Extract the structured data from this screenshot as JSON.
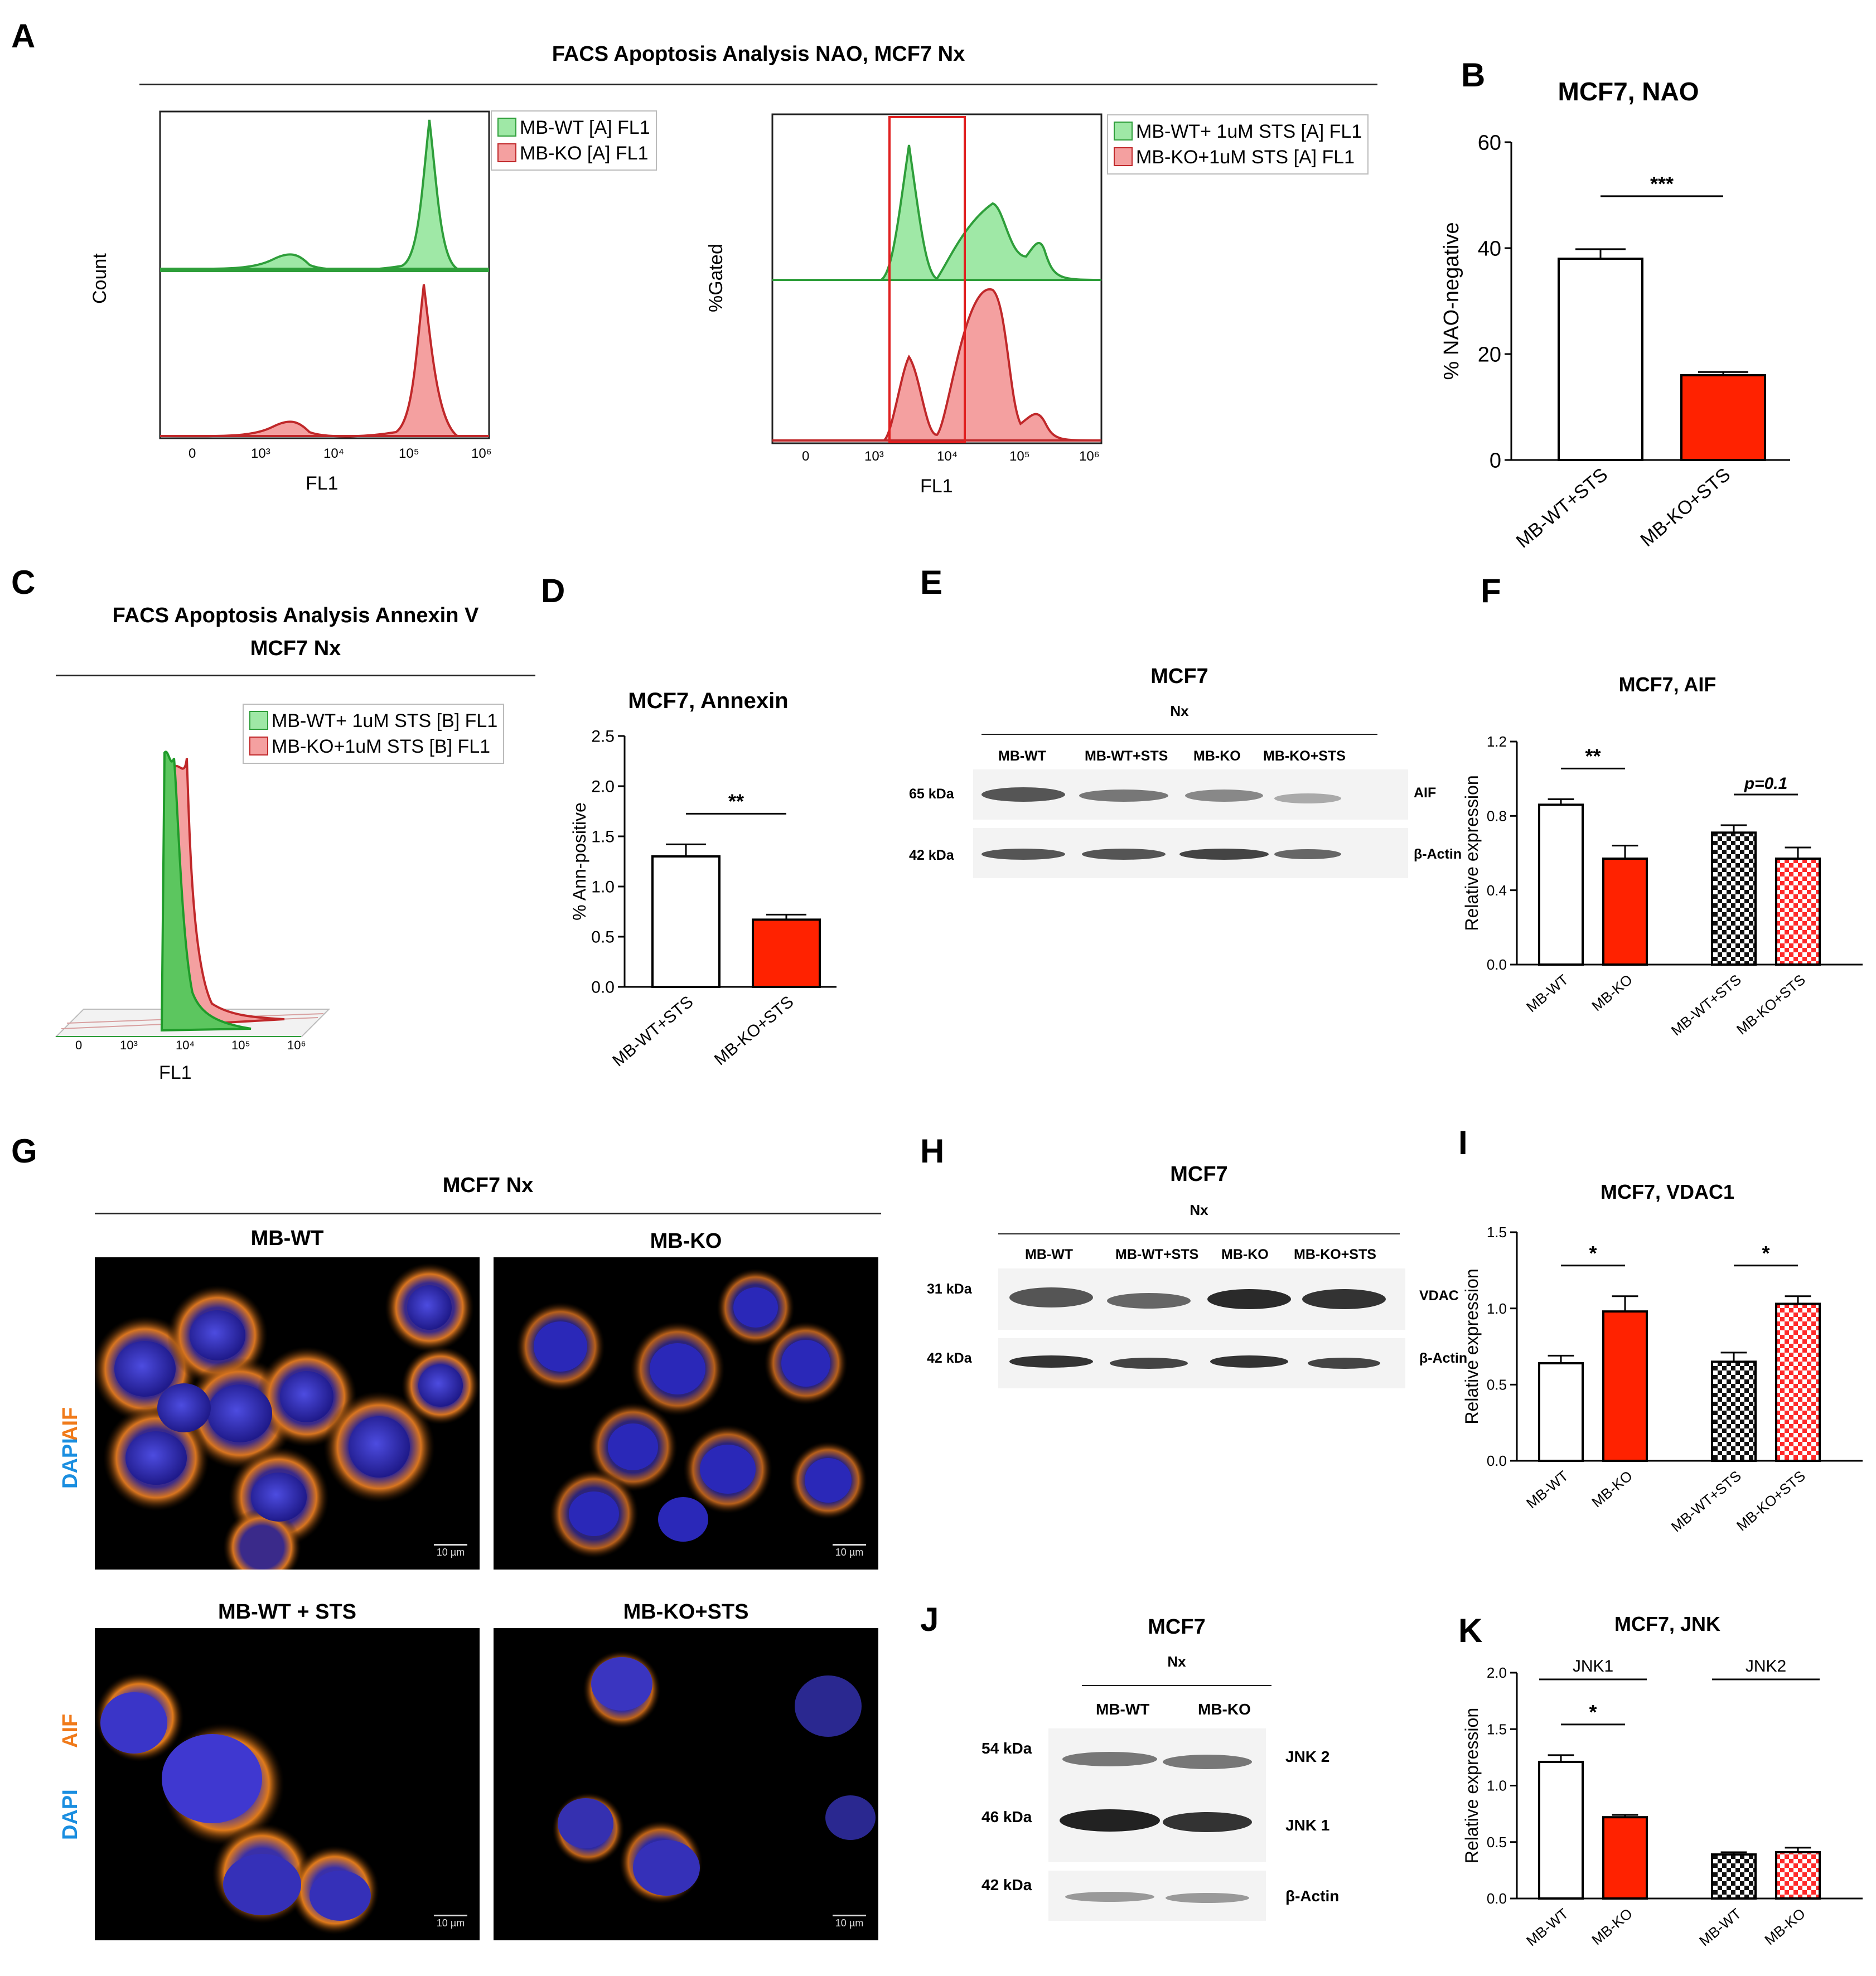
{
  "panels": {
    "A": {
      "label": "A",
      "title": "FACS Apoptosis Analysis NAO, MCF7 Nx",
      "left": {
        "ylabel": "Count",
        "xlabel": "FL1",
        "ticks": [
          "0",
          "10³",
          "10⁴",
          "10⁵",
          "10⁶"
        ],
        "legend": [
          "MB-WT [A] FL1",
          "MB-KO [A] FL1"
        ]
      },
      "right": {
        "ylabel": "%Gated",
        "xlabel": "FL1",
        "ticks": [
          "0",
          "10³",
          "10⁴",
          "10⁵",
          "10⁶"
        ],
        "legend": [
          "MB-WT+ 1uM STS [A] FL1",
          "MB-KO+1uM STS [A] FL1"
        ]
      }
    },
    "C": {
      "label": "C",
      "title_line1": "FACS Apoptosis Analysis Annexin V",
      "title_line2": "MCF7 Nx",
      "xlabel": "FL1",
      "ticks": [
        "0",
        "10³",
        "10⁴",
        "10⁵",
        "10⁶"
      ],
      "legend": [
        "MB-WT+ 1uM STS [B] FL1",
        "MB-KO+1uM STS [B] FL1"
      ]
    },
    "E": {
      "label": "E",
      "title": "MCF7",
      "subtitle": "Nx",
      "lanes": [
        "MB-WT",
        "MB-WT+STS",
        "MB-KO",
        "MB-KO+STS"
      ],
      "rows": [
        {
          "size": "65 kDa",
          "name": "AIF"
        },
        {
          "size": "42 kDa",
          "name": "β-Actin"
        }
      ]
    },
    "G": {
      "label": "G",
      "title": "MCF7 Nx",
      "images": [
        "MB-WT",
        "MB-KO",
        "MB-WT + STS",
        "MB-KO+STS"
      ],
      "stain1": "AIF",
      "stain2": "DAPI",
      "scale": "10 µm"
    },
    "H": {
      "label": "H",
      "title": "MCF7",
      "subtitle": "Nx",
      "lanes": [
        "MB-WT",
        "MB-WT+STS",
        "MB-KO",
        "MB-KO+STS"
      ],
      "rows": [
        {
          "size": "31 kDa",
          "name": "VDAC"
        },
        {
          "size": "42 kDa",
          "name": "β-Actin"
        }
      ]
    },
    "J": {
      "label": "J",
      "title": "MCF7",
      "subtitle": "Nx",
      "lanes": [
        "MB-WT",
        "MB-KO"
      ],
      "rows": [
        {
          "size": "54 kDa",
          "name": "JNK 2"
        },
        {
          "size": "46 kDa",
          "name": "JNK 1"
        },
        {
          "size": "42 kDa",
          "name": "β-Actin"
        }
      ]
    }
  },
  "colors": {
    "wt": "#ffffff",
    "ko": "#ff2200",
    "green": "#2e9e3a",
    "greenFill": "#9fe8a6",
    "red": "#c0282a",
    "redFill": "#f4a0a0",
    "gate": "#e02020"
  },
  "chart_data": [
    {
      "id": "B",
      "panel_label": "B",
      "type": "bar",
      "title": "MCF7, NAO",
      "ylabel": "% NAO-negative",
      "categories": [
        "MB-WT+STS",
        "MB-KO+STS"
      ],
      "values": [
        38,
        16
      ],
      "errors": [
        1.8,
        0.6
      ],
      "fills": [
        "white",
        "red"
      ],
      "ylim": [
        0,
        60
      ],
      "yticks": [
        0,
        20,
        40,
        60
      ],
      "significance": [
        {
          "from": 0,
          "to": 1,
          "text": "***"
        }
      ]
    },
    {
      "id": "D",
      "panel_label": "D",
      "type": "bar",
      "title": "MCF7, Annexin",
      "ylabel": "% Ann-positive",
      "categories": [
        "MB-WT+STS",
        "MB-KO+STS"
      ],
      "values": [
        1.3,
        0.67
      ],
      "errors": [
        0.12,
        0.05
      ],
      "fills": [
        "white",
        "red"
      ],
      "ylim": [
        0,
        2.5
      ],
      "yticks": [
        "0.0",
        "0.5",
        "1.0",
        "1.5",
        "2.0",
        "2.5"
      ],
      "significance": [
        {
          "from": 0,
          "to": 1,
          "text": "**"
        }
      ]
    },
    {
      "id": "F",
      "panel_label": "F",
      "type": "bar",
      "title": "MCF7, AIF",
      "ylabel": "Relative expression",
      "categories": [
        "MB-WT",
        "MB-KO",
        "MB-WT+STS",
        "MB-KO+STS"
      ],
      "values": [
        0.86,
        0.57,
        0.71,
        0.57
      ],
      "errors": [
        0.03,
        0.07,
        0.04,
        0.06
      ],
      "fills": [
        "white",
        "red",
        "check-black",
        "check-red"
      ],
      "ylim": [
        0,
        1.2
      ],
      "yticks": [
        "0.0",
        "0.4",
        "0.8",
        "1.2"
      ],
      "significance": [
        {
          "from": 0,
          "to": 1,
          "text": "**"
        },
        {
          "from": 2,
          "to": 3,
          "text": "p=0.1"
        }
      ]
    },
    {
      "id": "I",
      "panel_label": "I",
      "type": "bar",
      "title": "MCF7, VDAC1",
      "ylabel": "Relative expression",
      "categories": [
        "MB-WT",
        "MB-KO",
        "MB-WT+STS",
        "MB-KO+STS"
      ],
      "values": [
        0.64,
        0.98,
        0.65,
        1.03
      ],
      "errors": [
        0.05,
        0.1,
        0.06,
        0.05
      ],
      "fills": [
        "white",
        "red",
        "check-black",
        "check-red"
      ],
      "ylim": [
        0,
        1.5
      ],
      "yticks": [
        "0.0",
        "0.5",
        "1.0",
        "1.5"
      ],
      "significance": [
        {
          "from": 0,
          "to": 1,
          "text": "*"
        },
        {
          "from": 2,
          "to": 3,
          "text": "*"
        }
      ]
    },
    {
      "id": "K",
      "panel_label": "K",
      "type": "bar",
      "title": "MCF7, JNK",
      "ylabel": "Relative expression",
      "categories": [
        "MB-WT",
        "MB-KO",
        "MB-WT",
        "MB-KO"
      ],
      "values": [
        1.21,
        0.72,
        0.39,
        0.41
      ],
      "errors": [
        0.06,
        0.02,
        0.02,
        0.04
      ],
      "fills": [
        "white",
        "red",
        "check-black",
        "check-red"
      ],
      "ylim": [
        0,
        2.0
      ],
      "yticks": [
        "0.0",
        "0.5",
        "1.0",
        "1.5",
        "2.0"
      ],
      "groups": [
        {
          "from": 0,
          "to": 1,
          "text": "JNK1"
        },
        {
          "from": 2,
          "to": 3,
          "text": "JNK2"
        }
      ],
      "significance": [
        {
          "from": 0,
          "to": 1,
          "text": "*"
        }
      ]
    }
  ]
}
